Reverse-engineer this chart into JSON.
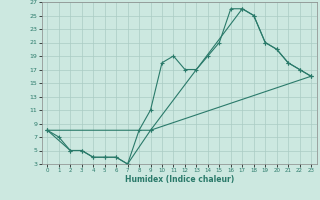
{
  "title": "",
  "xlabel": "Humidex (Indice chaleur)",
  "ylabel": "",
  "background_color": "#cce8e0",
  "line_color": "#2a7a6a",
  "grid_color": "#aaccc4",
  "xlim": [
    -0.5,
    23.5
  ],
  "ylim": [
    3,
    27
  ],
  "xticks": [
    0,
    1,
    2,
    3,
    4,
    5,
    6,
    7,
    8,
    9,
    10,
    11,
    12,
    13,
    14,
    15,
    16,
    17,
    18,
    19,
    20,
    21,
    22,
    23
  ],
  "yticks": [
    3,
    5,
    7,
    9,
    11,
    13,
    15,
    17,
    19,
    21,
    23,
    25,
    27
  ],
  "line1": {
    "x": [
      0,
      1,
      2,
      3,
      4,
      5,
      6,
      7,
      8,
      9,
      10,
      11,
      12,
      13,
      14,
      15,
      16,
      17,
      18,
      19,
      20,
      21,
      22,
      23
    ],
    "y": [
      8,
      7,
      5,
      5,
      4,
      4,
      4,
      3,
      8,
      11,
      18,
      19,
      17,
      17,
      19,
      21,
      26,
      26,
      25,
      21,
      20,
      18,
      17,
      16
    ]
  },
  "line2": {
    "x": [
      0,
      2,
      3,
      4,
      5,
      6,
      7,
      9,
      23
    ],
    "y": [
      8,
      5,
      5,
      4,
      4,
      4,
      3,
      8,
      16
    ]
  },
  "line3": {
    "x": [
      0,
      9,
      17,
      18,
      19,
      20,
      21,
      22,
      23
    ],
    "y": [
      8,
      8,
      26,
      25,
      21,
      20,
      18,
      17,
      16
    ]
  }
}
